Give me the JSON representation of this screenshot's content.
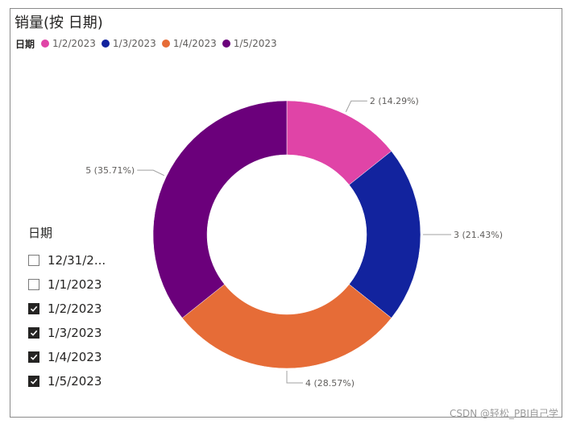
{
  "chart_data": {
    "type": "pie",
    "donut": true,
    "title": "销量(按 日期)",
    "legend_title": "日期",
    "legend_position": "top-left",
    "categories": [
      "1/2/2023",
      "1/3/2023",
      "1/4/2023",
      "1/5/2023"
    ],
    "values": [
      2,
      3,
      4,
      5
    ],
    "data_labels": [
      "2 (14.29%)",
      "3 (21.43%)",
      "4 (28.57%)",
      "5 (35.71%)"
    ],
    "colors": [
      "#E044A7",
      "#12239E",
      "#E66C37",
      "#6B007B"
    ]
  },
  "slicer": {
    "title": "日期",
    "items": [
      {
        "label": "12/31/2...",
        "checked": false
      },
      {
        "label": "1/1/2023",
        "checked": false
      },
      {
        "label": "1/2/2023",
        "checked": true
      },
      {
        "label": "1/3/2023",
        "checked": true
      },
      {
        "label": "1/4/2023",
        "checked": true
      },
      {
        "label": "1/5/2023",
        "checked": true
      }
    ]
  },
  "watermark": "CSDN @轻松_PBI自己学"
}
